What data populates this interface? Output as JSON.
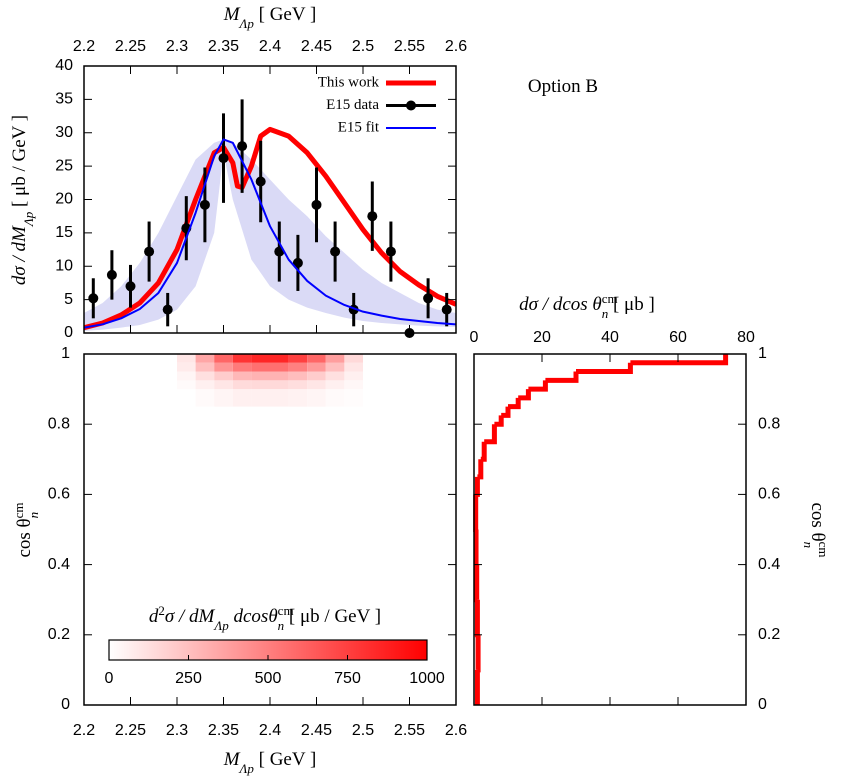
{
  "chart_data": [
    {
      "type": "line",
      "x_label": [
        {
          "text": "M",
          "style": "italic"
        },
        {
          "text": "Λp",
          "style": "sub"
        },
        {
          "text": "  [ GeV ]"
        }
      ],
      "y_label": [
        {
          "text": "dσ / dM",
          "style": "italic"
        },
        {
          "text": "Λp",
          "style": "sub"
        },
        {
          "text": "  [ μb / GeV ]"
        }
      ],
      "annotation": "Option B",
      "xlim": [
        2.2,
        2.6
      ],
      "xticks": [
        2.2,
        2.25,
        2.3,
        2.35,
        2.4,
        2.45,
        2.5,
        2.55,
        2.6
      ],
      "ylim": [
        0,
        40
      ],
      "yticks": [
        0,
        5,
        10,
        15,
        20,
        25,
        30,
        35,
        40
      ],
      "legend": "upper right",
      "series": [
        {
          "name": "This work",
          "color": "#ff0000",
          "x": [
            2.2,
            2.22,
            2.24,
            2.26,
            2.28,
            2.3,
            2.32,
            2.34,
            2.35,
            2.36,
            2.365,
            2.37,
            2.38,
            2.39,
            2.4,
            2.42,
            2.44,
            2.46,
            2.48,
            2.5,
            2.52,
            2.54,
            2.56,
            2.58,
            2.6
          ],
          "values": [
            0.8,
            1.5,
            2.7,
            4.5,
            7.5,
            12.5,
            20,
            27,
            27.8,
            25.5,
            22,
            21.8,
            25,
            29.5,
            30.5,
            29.5,
            27,
            23.5,
            19.5,
            15.5,
            12,
            9.2,
            7.2,
            5.5,
            4.3
          ]
        },
        {
          "name": "E15 data",
          "color": "#000000",
          "x": [
            2.21,
            2.23,
            2.25,
            2.27,
            2.29,
            2.31,
            2.33,
            2.35,
            2.37,
            2.39,
            2.41,
            2.43,
            2.45,
            2.47,
            2.49,
            2.51,
            2.53,
            2.55,
            2.57,
            2.59
          ],
          "values": [
            5.2,
            8.7,
            7,
            12.2,
            3.5,
            15.7,
            19.2,
            26.2,
            28,
            22.7,
            12.2,
            10.5,
            19.2,
            12.2,
            3.5,
            17.5,
            12.2,
            0,
            5.2,
            3.5
          ],
          "errors": [
            3,
            3.7,
            3.2,
            4.5,
            2.5,
            4.8,
            5.6,
            6.7,
            7,
            6.1,
            4.5,
            4.2,
            5.6,
            4.5,
            2.5,
            5.2,
            4.5,
            0,
            3,
            2.5
          ]
        },
        {
          "name": "E15 fit",
          "color": "#0000ff",
          "band_color": "#dadaf6",
          "x": [
            2.2,
            2.22,
            2.24,
            2.26,
            2.28,
            2.3,
            2.32,
            2.34,
            2.35,
            2.36,
            2.38,
            2.4,
            2.42,
            2.44,
            2.46,
            2.48,
            2.5,
            2.52,
            2.54,
            2.56,
            2.58,
            2.6
          ],
          "values": [
            0.8,
            1.3,
            2.2,
            3.6,
            6,
            10.5,
            18,
            26.5,
            29,
            28.5,
            23,
            16,
            11,
            7.8,
            5.6,
            4.2,
            3.2,
            2.6,
            2.1,
            1.8,
            1.5,
            1.3
          ],
          "band_upper": [
            3,
            4.5,
            7,
            10.5,
            15,
            20.5,
            26,
            28.5,
            29,
            28.5,
            26,
            23,
            20,
            17.5,
            14.5,
            12,
            9.5,
            7.5,
            6,
            4.5,
            3.5,
            3
          ],
          "band_lower": [
            0.3,
            0.5,
            0.8,
            1.2,
            2,
            3.5,
            7,
            15,
            27,
            20,
            11,
            7,
            5,
            3.8,
            3,
            2.3,
            1.8,
            1.5,
            1.3,
            1.1,
            1,
            0.9
          ]
        }
      ]
    },
    {
      "type": "heatmap",
      "x_label": [
        {
          "text": "M",
          "style": "italic"
        },
        {
          "text": "Λp",
          "style": "sub"
        },
        {
          "text": "  [ GeV ]"
        }
      ],
      "y_label": [
        {
          "text": "cos θ"
        },
        {
          "text": "cm",
          "style": "sup"
        },
        {
          "text": "n",
          "style": "sub"
        }
      ],
      "xlim": [
        2.2,
        2.6
      ],
      "xticks": [
        2.2,
        2.25,
        2.3,
        2.35,
        2.4,
        2.45,
        2.5,
        2.55,
        2.6
      ],
      "ylim": [
        0,
        1
      ],
      "yticks": [
        0,
        0.2,
        0.4,
        0.6,
        0.8,
        1
      ],
      "x_edges": [
        2.3,
        2.32,
        2.34,
        2.36,
        2.38,
        2.4,
        2.42,
        2.44,
        2.46,
        2.48,
        2.5
      ],
      "y_edges": [
        0.85,
        0.9,
        0.925,
        0.95,
        0.975,
        1
      ],
      "z": [
        [
          0,
          20,
          40,
          60,
          60,
          60,
          50,
          40,
          20,
          10
        ],
        [
          20,
          60,
          100,
          140,
          150,
          150,
          130,
          100,
          60,
          30
        ],
        [
          40,
          120,
          200,
          280,
          300,
          300,
          260,
          200,
          120,
          60
        ],
        [
          80,
          250,
          420,
          520,
          560,
          560,
          500,
          400,
          250,
          100
        ],
        [
          100,
          350,
          600,
          800,
          850,
          850,
          750,
          600,
          380,
          150
        ]
      ],
      "colorbar": {
        "label": [
          {
            "text": "d",
            "style": "italic"
          },
          {
            "text": "2",
            "style": "sup"
          },
          {
            "text": "σ / dM",
            "style": "italic"
          },
          {
            "text": "Λp",
            "style": "sub"
          },
          {
            "text": " dcosθ",
            "style": "italic"
          },
          {
            "text": "cm",
            "style": "sup"
          },
          {
            "text": "n",
            "style": "sub"
          },
          {
            "text": "  [ μb / GeV ]"
          }
        ],
        "zlim": [
          0,
          1000
        ],
        "zticks": [
          0,
          250,
          500,
          750,
          1000
        ],
        "colors": [
          "#ffffff",
          "#ff0000"
        ]
      }
    },
    {
      "type": "histogram",
      "orientation": "horizontal",
      "x_label": [
        {
          "text": "dσ / dcos θ",
          "style": "italic"
        },
        {
          "text": "cm",
          "style": "sup"
        },
        {
          "text": "n",
          "style": "sub"
        },
        {
          "text": "  [ μb ]"
        }
      ],
      "y_label": [
        {
          "text": "cos θ"
        },
        {
          "text": "cm",
          "style": "sup"
        },
        {
          "text": "n",
          "style": "sub"
        }
      ],
      "xlim": [
        0,
        80
      ],
      "xticks": [
        0,
        20,
        40,
        60,
        80
      ],
      "ylim": [
        0,
        1
      ],
      "yticks": [
        0,
        0.2,
        0.4,
        0.6,
        0.8,
        1
      ],
      "color": "#ff0000",
      "bins": [
        0,
        0.1,
        0.2,
        0.3,
        0.4,
        0.5,
        0.6,
        0.65,
        0.7,
        0.75,
        0.8,
        0.825,
        0.85,
        0.875,
        0.9,
        0.925,
        0.95,
        0.975,
        1
      ],
      "values": [
        1,
        1.2,
        1,
        0.8,
        0.6,
        0.5,
        1,
        2,
        3,
        6,
        8,
        10,
        13,
        16,
        21,
        30,
        46,
        74
      ]
    }
  ]
}
